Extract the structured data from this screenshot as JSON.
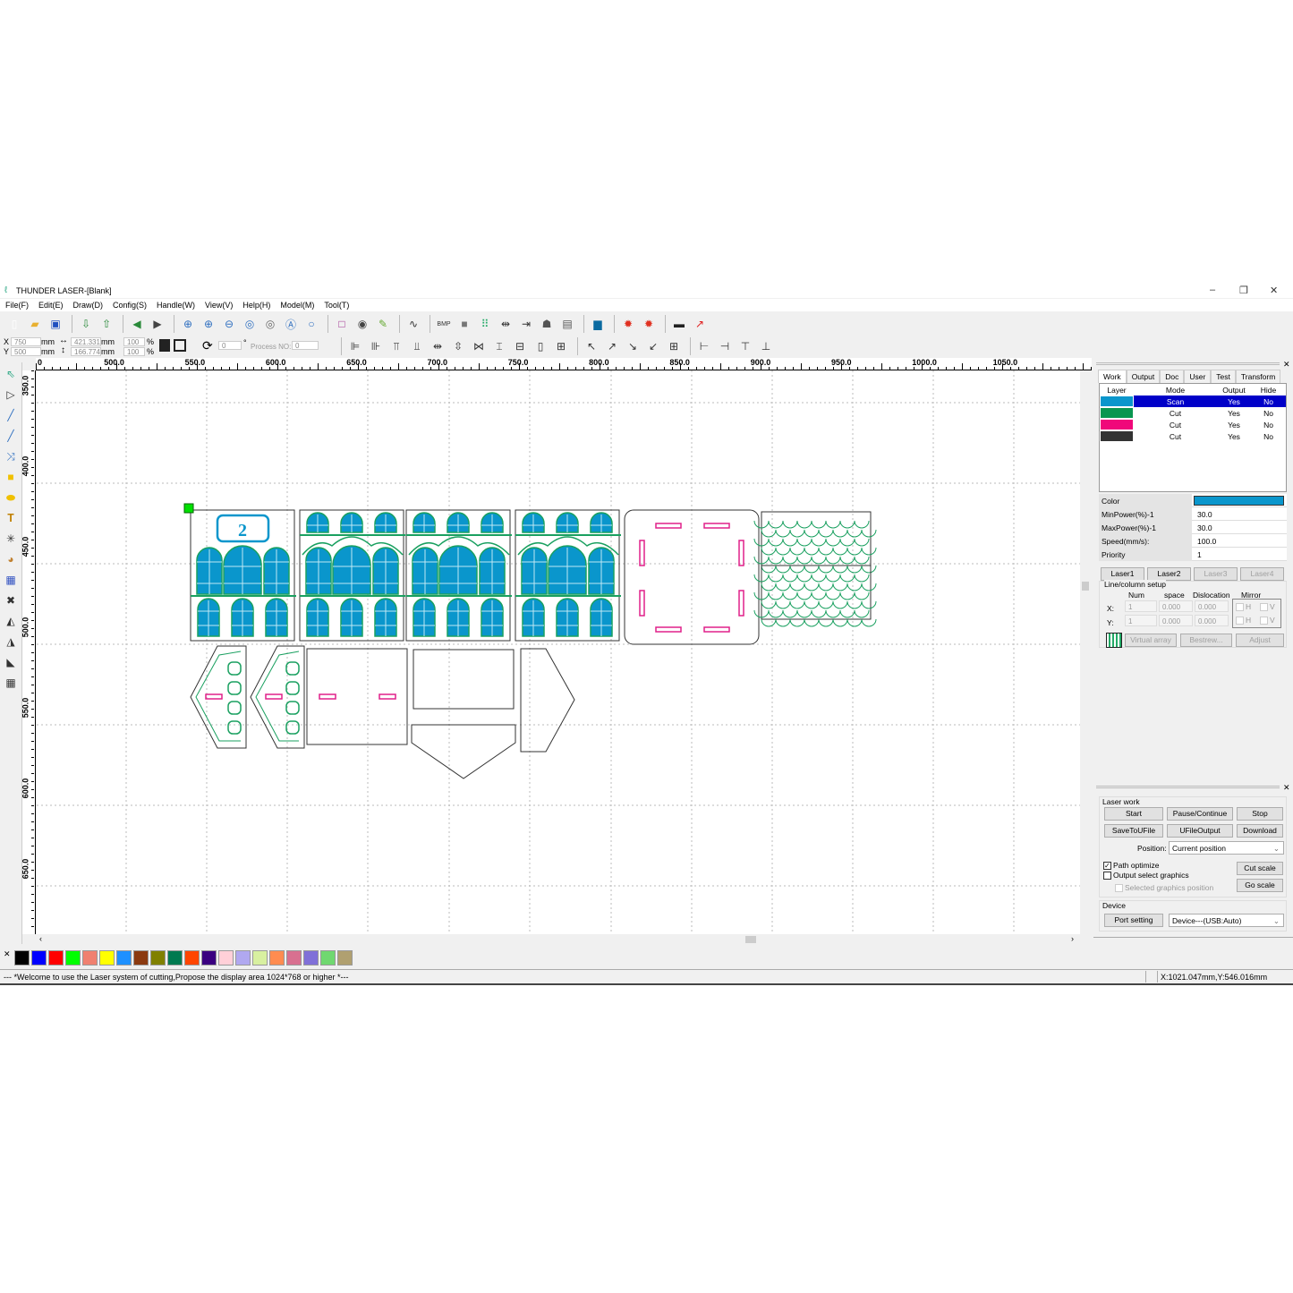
{
  "window": {
    "title": "THUNDER LASER-[Blank]",
    "minimize": "–",
    "restore": "❐",
    "close": "✕"
  },
  "menu": [
    "File(F)",
    "Edit(E)",
    "Draw(D)",
    "Config(S)",
    "Handle(W)",
    "View(V)",
    "Help(H)",
    "Model(M)",
    "Tool(T)"
  ],
  "toolbar1": [
    "new-file",
    "open-folder",
    "save",
    "import",
    "export",
    "undo",
    "redo",
    "zoom-in-box",
    "zoom-in",
    "zoom-out",
    "zoom-page",
    "zoom-fit",
    "zoom-select",
    "zoom-actual",
    "frame",
    "rotate-node",
    "smooth",
    "curve",
    "bmp",
    "fill",
    "group",
    "align-h",
    "align-v",
    "print",
    "doc-props",
    "monitor",
    "laser-select-1",
    "laser-select-2",
    "projector",
    "red-light"
  ],
  "toolbar1_bmp": "BMP",
  "coords": {
    "x_label": "X",
    "x": "750",
    "y_label": "Y",
    "y": "500",
    "unit": "mm",
    "width": "421.331",
    "height": "166.774",
    "scale_x": "100",
    "scale_y": "100",
    "pct": "%",
    "angle": "0",
    "deg": "°",
    "process_no_label": "Process NO:",
    "process_no": "0"
  },
  "ruler": {
    "h": [
      "0",
      "500.0",
      "550.0",
      "600.0",
      "650.0",
      "700.0",
      "750.0",
      "800.0",
      "850.0",
      "900.0",
      "950.0",
      "1000.0",
      "1050.0"
    ],
    "v": [
      "350.0",
      "400.0",
      "450.0",
      "500.0",
      "550.0",
      "600.0",
      "650.0"
    ]
  },
  "drawing": {
    "plate_number": "2",
    "colors": {
      "scan": "#0a96cc",
      "cut_green": "#1aa060",
      "cut_pink": "#e0208a",
      "cut_black": "#333333"
    }
  },
  "palette": [
    "#000000",
    "#0000ff",
    "#ff0000",
    "#00ff00",
    "#f08070",
    "#ffff00",
    "#1e90ff",
    "#8b3a10",
    "#808000",
    "#007a50",
    "#ff4500",
    "#3a0080",
    "#ffd0d8",
    "#b0a8f0",
    "#d8f0a0",
    "#ff8c50",
    "#d87090",
    "#8070d8",
    "#70d870",
    "#b0a070"
  ],
  "status": {
    "message": "--- *Welcome to use the Laser system of cutting,Propose the display area 1024*768 or higher *---",
    "position": "X:1021.047mm,Y:546.016mm"
  },
  "panel": {
    "tabs": [
      "Work",
      "Output",
      "Doc",
      "User",
      "Test",
      "Transform"
    ],
    "layer_headers": [
      "Layer",
      "Mode",
      "Output",
      "Hide"
    ],
    "layers": [
      {
        "color": "#0a96cc",
        "mode": "Scan",
        "output": "Yes",
        "hide": "No",
        "selected": true
      },
      {
        "color": "#0a9650",
        "mode": "Cut",
        "output": "Yes",
        "hide": "No"
      },
      {
        "color": "#f0087a",
        "mode": "Cut",
        "output": "Yes",
        "hide": "No"
      },
      {
        "color": "#333333",
        "mode": "Cut",
        "output": "Yes",
        "hide": "No"
      }
    ],
    "props": [
      {
        "k": "Color",
        "v": ""
      },
      {
        "k": "MinPower(%)-1",
        "v": "30.0"
      },
      {
        "k": "MaxPower(%)-1",
        "v": "30.0"
      },
      {
        "k": "Speed(mm/s):",
        "v": "100.0"
      },
      {
        "k": "Priority",
        "v": "1"
      }
    ],
    "lasers": [
      "Laser1",
      "Laser2",
      "Laser3",
      "Laser4"
    ],
    "array": {
      "title": "Line/column setup",
      "headers": [
        "Num",
        "space",
        "Dislocation",
        "Mirror"
      ],
      "x_label": "X:",
      "y_label": "Y:",
      "num": "1",
      "space": "0.000",
      "dislocation": "0.000",
      "h": "H",
      "v": "V",
      "virtual": "Virtual array",
      "bestrew": "Bestrew...",
      "adjust": "Adjust"
    },
    "laser_work": {
      "title": "Laser work",
      "start": "Start",
      "pause": "Pause/Continue",
      "stop": "Stop",
      "save": "SaveToUFile",
      "ufile": "UFileOutput",
      "download": "Download",
      "position_label": "Position:",
      "position": "Current position",
      "path_optimize": "Path optimize",
      "path_optimize_checked": true,
      "output_select": "Output select graphics",
      "output_select_checked": false,
      "selected_pos": "Selected graphics position",
      "cut_scale": "Cut scale",
      "go_scale": "Go scale"
    },
    "device": {
      "title": "Device",
      "port": "Port setting",
      "device": "Device---(USB:Auto)"
    }
  }
}
